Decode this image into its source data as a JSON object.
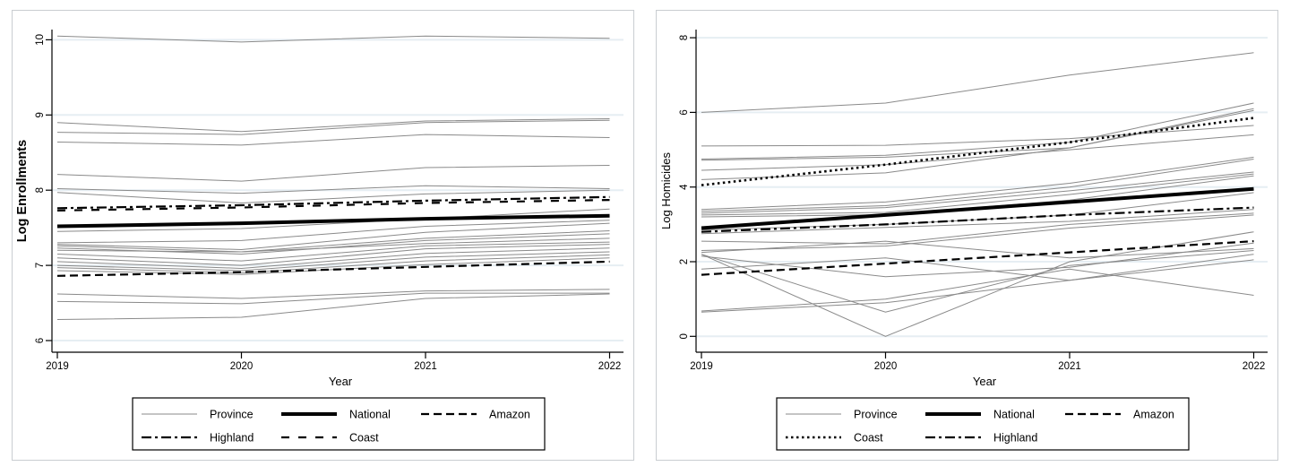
{
  "page": {
    "background": "#ffffff"
  },
  "colors": {
    "grid": "#e6eef3",
    "frame": "#c9cdd1",
    "axis": "#000000",
    "province": "#8a8a8a",
    "mean": "#000000"
  },
  "chart_data": [
    {
      "type": "line",
      "name": "enrollments",
      "title": "",
      "xlabel": "Year",
      "ylabel": "Log Enrollments",
      "ylabel_bold": true,
      "x": [
        2019,
        2020,
        2021,
        2022
      ],
      "xticks": [
        "2019",
        "2020",
        "2021",
        "2022"
      ],
      "yticks": [
        "6",
        "7",
        "8",
        "9",
        "10"
      ],
      "ytick_values": [
        6,
        7,
        8,
        9,
        10
      ],
      "ylim": [
        5.85,
        10.14
      ],
      "xlim": [
        2019,
        2022
      ],
      "grid": true,
      "legend_position": "below",
      "legend_rows": [
        [
          "Province",
          "National",
          "Amazon"
        ],
        [
          "Highland",
          "Coast"
        ]
      ],
      "series": [
        {
          "name": "Province",
          "style": "province",
          "values": [
            [
              10.05,
              9.97,
              10.05,
              10.02
            ],
            [
              8.9,
              8.78,
              8.92,
              8.95
            ],
            [
              8.77,
              8.74,
              8.9,
              8.93
            ],
            [
              8.64,
              8.6,
              8.74,
              8.7
            ],
            [
              8.21,
              8.12,
              8.3,
              8.33
            ],
            [
              8.02,
              7.96,
              8.06,
              8.02
            ],
            [
              7.97,
              7.83,
              7.95,
              8.0
            ],
            [
              7.45,
              7.49,
              7.62,
              7.75
            ],
            [
              7.3,
              7.33,
              7.52,
              7.6
            ],
            [
              7.28,
              7.21,
              7.44,
              7.56
            ],
            [
              7.26,
              7.18,
              7.36,
              7.46
            ],
            [
              7.23,
              7.15,
              7.33,
              7.42
            ],
            [
              7.2,
              7.18,
              7.29,
              7.36
            ],
            [
              7.15,
              7.06,
              7.26,
              7.31
            ],
            [
              7.1,
              7.0,
              7.22,
              7.28
            ],
            [
              7.05,
              6.96,
              7.16,
              7.23
            ],
            [
              7.0,
              6.93,
              7.11,
              7.18
            ],
            [
              6.97,
              6.9,
              7.06,
              7.14
            ],
            [
              6.93,
              6.88,
              7.01,
              7.1
            ],
            [
              6.62,
              6.56,
              6.66,
              6.68
            ],
            [
              6.52,
              6.49,
              6.63,
              6.63
            ],
            [
              6.28,
              6.31,
              6.56,
              6.62
            ]
          ]
        },
        {
          "name": "Coast",
          "style": "coast_dash",
          "values": [
            7.73,
            7.77,
            7.83,
            7.87
          ]
        },
        {
          "name": "Highland",
          "style": "highland",
          "values": [
            7.76,
            7.8,
            7.86,
            7.91
          ]
        },
        {
          "name": "Amazon",
          "style": "amazon",
          "values": [
            6.86,
            6.91,
            6.98,
            7.05
          ]
        },
        {
          "name": "National",
          "style": "national",
          "values": [
            7.52,
            7.56,
            7.62,
            7.66
          ]
        }
      ]
    },
    {
      "type": "line",
      "name": "homicides",
      "title": "",
      "xlabel": "Year",
      "ylabel": "Log Homicides",
      "ylabel_bold": false,
      "x": [
        2019,
        2020,
        2021,
        2022
      ],
      "xticks": [
        "2019",
        "2020",
        "2021",
        "2022"
      ],
      "yticks": [
        "0",
        "2",
        "4",
        "6",
        "8"
      ],
      "ytick_values": [
        0,
        2,
        4,
        6,
        8
      ],
      "ylim": [
        -0.43,
        8.22
      ],
      "xlim": [
        2019,
        2022
      ],
      "grid": true,
      "legend_position": "below",
      "legend_rows": [
        [
          "Province",
          "National",
          "Amazon"
        ],
        [
          "Coast",
          "Highland"
        ]
      ],
      "series": [
        {
          "name": "Province",
          "style": "province",
          "values": [
            [
              6.0,
              6.25,
              7.0,
              7.6
            ],
            [
              5.1,
              5.12,
              5.3,
              5.65
            ],
            [
              4.75,
              4.85,
              5.2,
              6.25
            ],
            [
              4.72,
              4.8,
              5.05,
              6.1
            ],
            [
              4.45,
              4.6,
              5.0,
              5.4
            ],
            [
              4.2,
              4.38,
              5.05,
              6.05
            ],
            [
              3.4,
              3.6,
              4.1,
              4.8
            ],
            [
              3.35,
              3.5,
              4.0,
              4.75
            ],
            [
              3.3,
              3.45,
              3.9,
              4.4
            ],
            [
              3.25,
              3.32,
              3.8,
              4.35
            ],
            [
              3.2,
              3.26,
              3.65,
              4.3
            ],
            [
              2.85,
              3.0,
              3.25,
              3.85
            ],
            [
              2.75,
              2.92,
              3.08,
              3.4
            ],
            [
              2.55,
              2.48,
              3.0,
              3.3
            ],
            [
              2.3,
              2.42,
              2.9,
              3.25
            ],
            [
              2.25,
              2.55,
              2.1,
              2.35
            ],
            [
              2.2,
              0.0,
              2.0,
              2.8
            ],
            [
              2.2,
              0.65,
              1.9,
              2.3
            ],
            [
              2.15,
              1.6,
              1.85,
              2.5
            ],
            [
              1.8,
              2.1,
              1.5,
              2.05
            ],
            [
              0.65,
              0.9,
              1.5,
              2.2
            ],
            [
              0.68,
              1.0,
              1.8,
              1.1
            ]
          ]
        },
        {
          "name": "Coast",
          "style": "coast_dot",
          "values": [
            4.05,
            4.6,
            5.2,
            5.85
          ]
        },
        {
          "name": "Highland",
          "style": "highland",
          "values": [
            2.8,
            3.0,
            3.25,
            3.45
          ]
        },
        {
          "name": "Amazon",
          "style": "amazon",
          "values": [
            1.65,
            1.95,
            2.25,
            2.55
          ]
        },
        {
          "name": "National",
          "style": "national",
          "values": [
            2.9,
            3.25,
            3.6,
            3.95
          ]
        }
      ]
    }
  ],
  "line_styles": {
    "province": {
      "color": "#8a8a8a",
      "width": 1,
      "dash": ""
    },
    "national": {
      "color": "#000000",
      "width": 4,
      "dash": ""
    },
    "amazon": {
      "color": "#000000",
      "width": 2.2,
      "dash": "9,5"
    },
    "highland": {
      "color": "#000000",
      "width": 2.2,
      "dash": "11,4,3,4"
    },
    "coast_dash": {
      "color": "#000000",
      "width": 2.2,
      "dash": "9,10"
    },
    "coast_dot": {
      "color": "#000000",
      "width": 2.6,
      "dash": "2.5,3.5"
    }
  }
}
